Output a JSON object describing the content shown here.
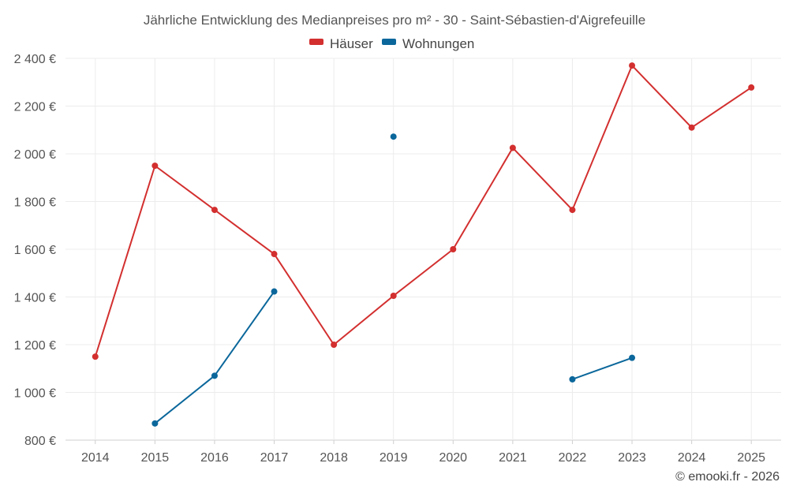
{
  "chart_data": {
    "type": "line",
    "title": "Jährliche Entwicklung des Medianpreises pro m² - 30 - Saint-Sébastien-d'Aigrefeuille",
    "xlabel": "",
    "ylabel": "",
    "categories": [
      "2014",
      "2015",
      "2016",
      "2017",
      "2018",
      "2019",
      "2020",
      "2021",
      "2022",
      "2023",
      "2024",
      "2025"
    ],
    "ylim": [
      800,
      2400
    ],
    "yticks": [
      800,
      1000,
      1200,
      1400,
      1600,
      1800,
      2000,
      2200,
      2400
    ],
    "y_tick_labels": [
      "800 €",
      "1 000 €",
      "1 200 €",
      "1 400 €",
      "1 600 €",
      "1 800 €",
      "2 000 €",
      "2 200 €",
      "2 400 €"
    ],
    "grid": true,
    "legend_position": "top-center",
    "series": [
      {
        "name": "Häuser",
        "color": "#d32f2f",
        "values": [
          1150,
          1950,
          1765,
          1580,
          1200,
          1405,
          1600,
          2025,
          1765,
          2370,
          2110,
          2278
        ]
      },
      {
        "name": "Wohnungen",
        "color": "#0b679b",
        "values": [
          null,
          870,
          1070,
          1423,
          null,
          2072,
          null,
          null,
          1055,
          1145,
          null,
          null
        ]
      }
    ]
  },
  "credit": "© emooki.fr - 2026"
}
